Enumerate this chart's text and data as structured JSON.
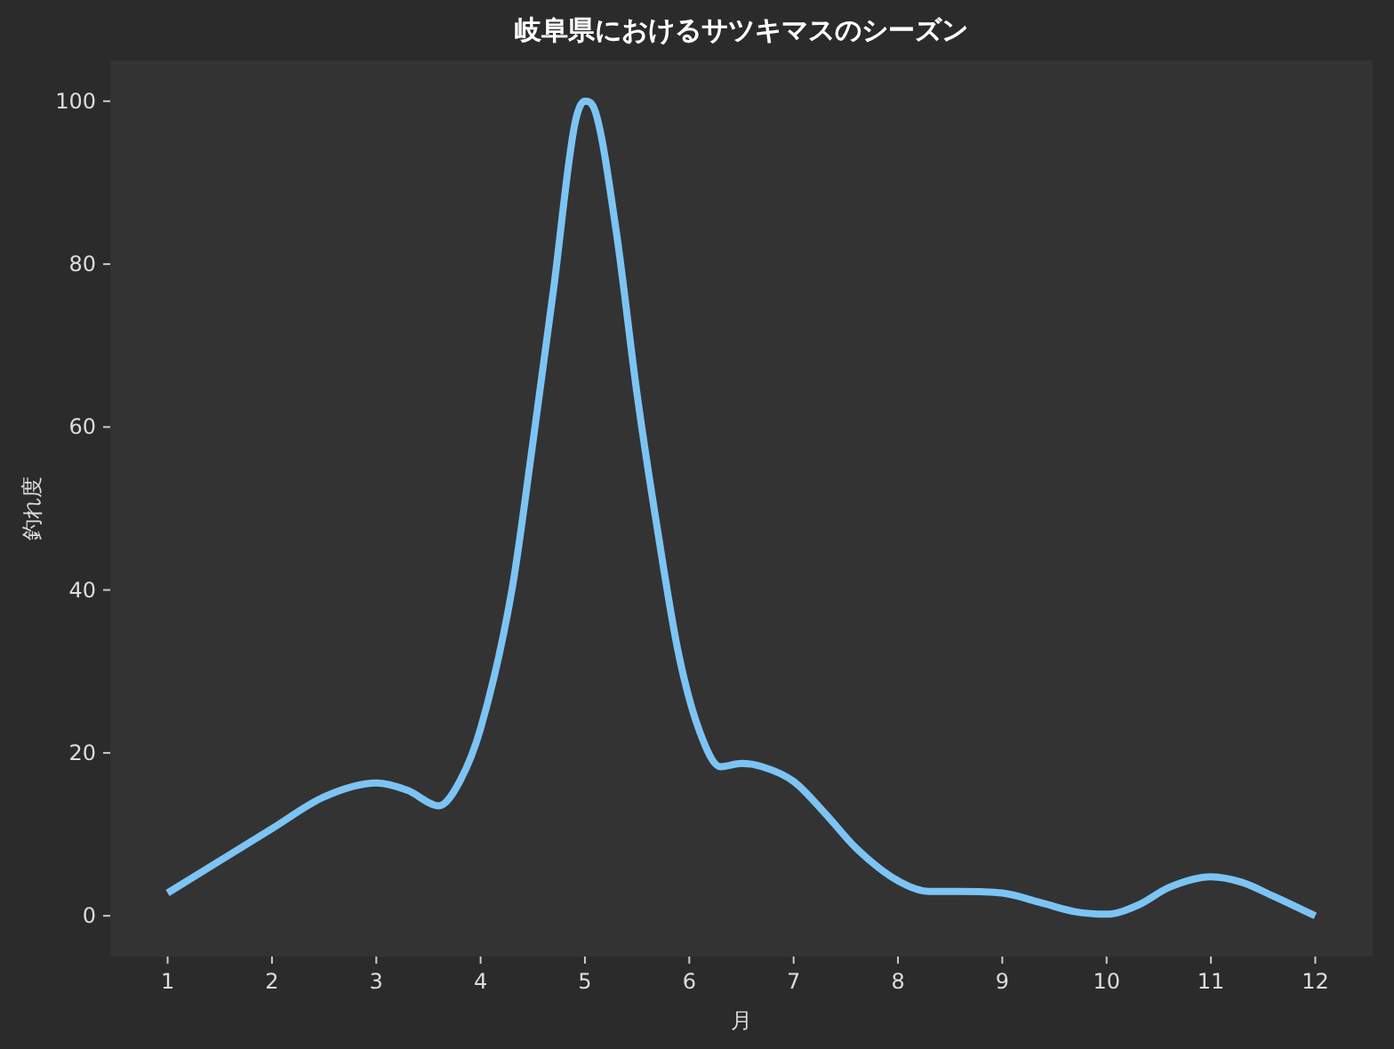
{
  "chart_data": {
    "type": "line",
    "title": "岐阜県におけるサツキマスのシーズン",
    "xlabel": "月",
    "ylabel": "釣れ度",
    "xlim": [
      0.45,
      12.55
    ],
    "ylim": [
      -5,
      105
    ],
    "xticks": [
      1,
      2,
      3,
      4,
      5,
      6,
      7,
      8,
      9,
      10,
      11,
      12
    ],
    "yticks": [
      0,
      20,
      40,
      60,
      80,
      100
    ],
    "grid": false,
    "marker": "none",
    "line_style": "solid",
    "series": [
      {
        "color": "#7cc4f4",
        "x": [
          1,
          2,
          2.5,
          3,
          3.3,
          3.6,
          3.8,
          4,
          4.3,
          4.5,
          4.7,
          4.9,
          5,
          5.1,
          5.3,
          5.5,
          5.7,
          5.9,
          6.1,
          6.3,
          6.5,
          6.7,
          7,
          7.3,
          7.6,
          8,
          8.3,
          8.6,
          9,
          9.4,
          9.7,
          10,
          10.3,
          10.6,
          11,
          11.3,
          11.6,
          12
        ],
        "values": [
          2.8,
          10.7,
          14.6,
          16.3,
          15.4,
          13.5,
          16.5,
          23,
          40,
          58,
          77,
          97,
          100,
          98.7,
          84,
          64,
          47,
          32,
          22.6,
          18.3,
          18.7,
          18.3,
          16.5,
          12.6,
          8.3,
          4.3,
          3,
          3,
          2.8,
          1.5,
          0.5,
          0.2,
          1.3,
          3.5,
          4.8,
          4.1,
          2.4,
          0
        ]
      }
    ]
  }
}
